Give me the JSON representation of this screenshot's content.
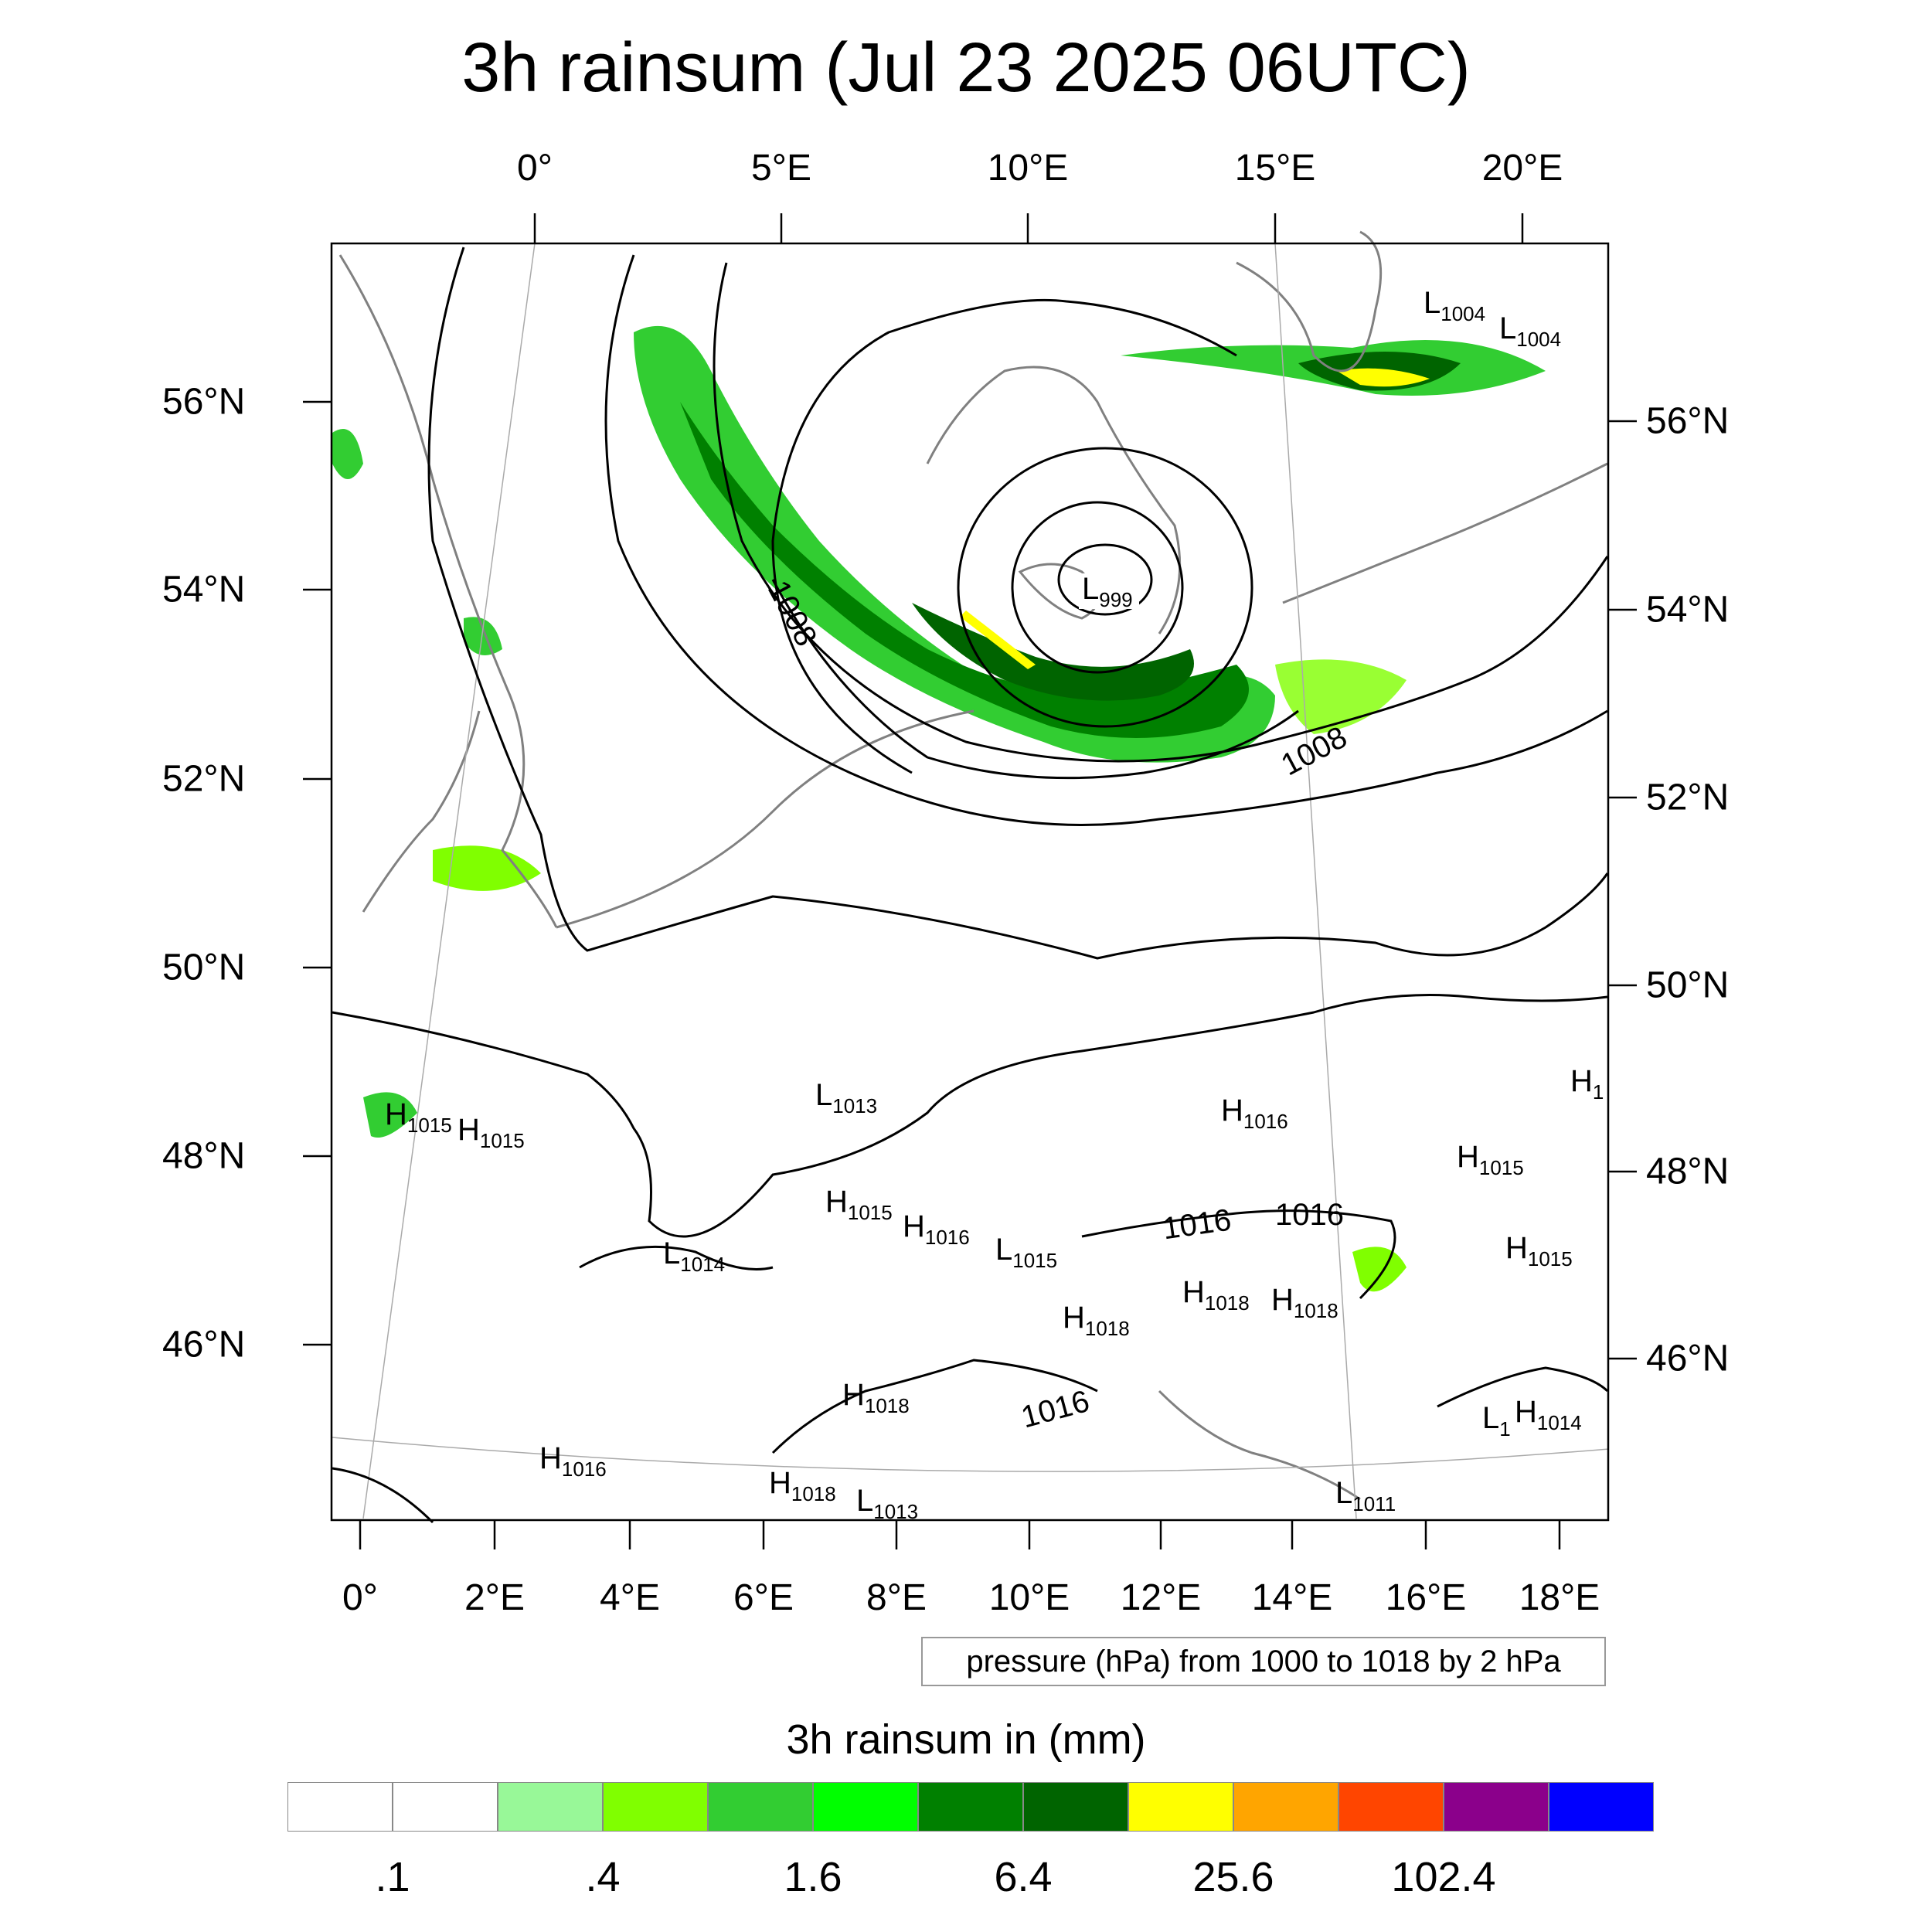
{
  "title": "3h rainsum (Jul 23 2025 06UTC)",
  "lon_top_labels": [
    "0°",
    "5°E",
    "10°E",
    "15°E",
    "20°E"
  ],
  "lon_bottom_labels": [
    "0°",
    "2°E",
    "4°E",
    "6°E",
    "8°E",
    "10°E",
    "12°E",
    "14°E",
    "16°E",
    "18°E"
  ],
  "lat_left_labels": [
    "56°N",
    "54°N",
    "52°N",
    "50°N",
    "48°N",
    "46°N"
  ],
  "lat_right_labels": [
    "56°N",
    "54°N",
    "52°N",
    "50°N",
    "48°N",
    "46°N"
  ],
  "contour_labels": [
    "1008",
    "1008",
    "1016",
    "1016",
    "1016"
  ],
  "pressure_centers": [
    {
      "type": "L",
      "value": "1004"
    },
    {
      "type": "L",
      "value": "1004"
    },
    {
      "type": "L",
      "value": "999"
    },
    {
      "type": "H",
      "value": "1015"
    },
    {
      "type": "H",
      "value": "1015"
    },
    {
      "type": "L",
      "value": "1013"
    },
    {
      "type": "H",
      "value": "1016"
    },
    {
      "type": "H",
      "value": "1015"
    },
    {
      "type": "H",
      "value": "1015"
    },
    {
      "type": "H",
      "value": "1016"
    },
    {
      "type": "L",
      "value": "1014"
    },
    {
      "type": "L",
      "value": "1015"
    },
    {
      "type": "H",
      "value": "1018"
    },
    {
      "type": "H",
      "value": "1018"
    },
    {
      "type": "H",
      "value": "1018"
    },
    {
      "type": "H",
      "value": "1015"
    },
    {
      "type": "H",
      "value": "1018"
    },
    {
      "type": "H",
      "value": "1014"
    },
    {
      "type": "L",
      "value": "1"
    },
    {
      "type": "H",
      "value": "1016"
    },
    {
      "type": "H",
      "value": "1018"
    },
    {
      "type": "L",
      "value": "1013"
    },
    {
      "type": "L",
      "value": "1011"
    },
    {
      "type": "H",
      "value": "1"
    }
  ],
  "pressure_note": "pressure (hPa) from 1000 to 1018 by 2 hPa",
  "colorbar": {
    "title": "3h rainsum in (mm)",
    "colors": [
      "#ffffff",
      "#ffffff",
      "#98f898",
      "#80ff00",
      "#32cd32",
      "#00ff00",
      "#008000",
      "#006400",
      "#ffff00",
      "#ffa500",
      "#ff4500",
      "#8b008b",
      "#0000ff"
    ],
    "labels": [
      ".1",
      ".4",
      "1.6",
      "6.4",
      "25.6",
      "102.4"
    ]
  }
}
